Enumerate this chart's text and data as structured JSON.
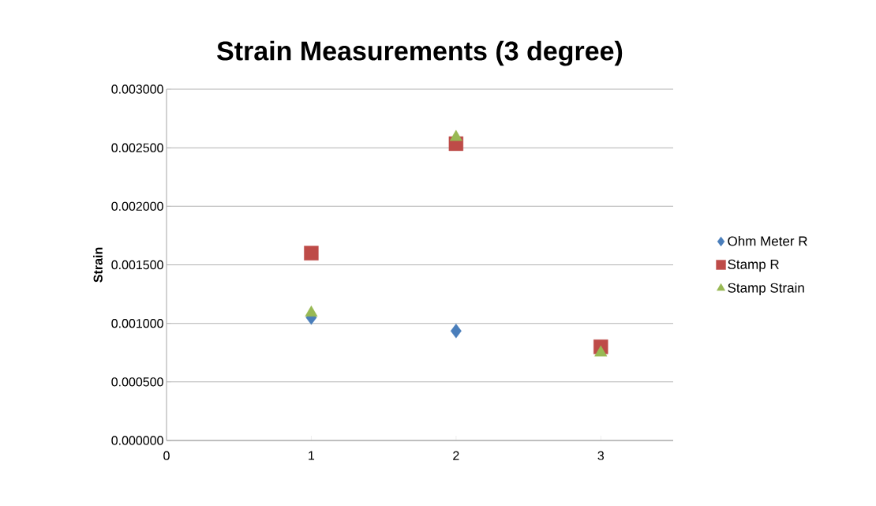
{
  "chart_data": {
    "type": "scatter",
    "title": "Strain Measurements (3 degree)",
    "ylabel": "Strain",
    "x": [
      1,
      2,
      3
    ],
    "series": [
      {
        "name": "Ohm Meter R",
        "color": "#4a7ebb",
        "marker": "diamond",
        "values": [
          0.00105,
          0.000935,
          null
        ]
      },
      {
        "name": "Stamp R",
        "color": "#be4b48",
        "marker": "square",
        "values": [
          0.0016,
          0.002535,
          0.0008
        ]
      },
      {
        "name": "Stamp Strain",
        "color": "#98b954",
        "marker": "triangle",
        "values": [
          0.00109,
          0.00259,
          0.00075
        ]
      }
    ],
    "xlim": [
      0,
      3.5
    ],
    "xticks": [
      0,
      1,
      2,
      3
    ],
    "ylim": [
      0,
      0.003
    ],
    "yticks": [
      {
        "value": 0,
        "label": "0.000000"
      },
      {
        "value": 0.0005,
        "label": "0.000500"
      },
      {
        "value": 0.001,
        "label": "0.001000"
      },
      {
        "value": 0.0015,
        "label": "0.001500"
      },
      {
        "value": 0.002,
        "label": "0.002000"
      },
      {
        "value": 0.0025,
        "label": "0.002500"
      },
      {
        "value": 0.003,
        "label": "0.003000"
      }
    ],
    "grid": "y",
    "legend": "right"
  }
}
